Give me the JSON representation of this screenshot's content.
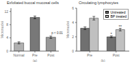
{
  "chart_data": [
    {
      "type": "bar",
      "title": "Exfoliated buccal mucosal cells",
      "xlabel": "(a)",
      "ylabel": "Micronuclei",
      "categories": [
        "Normal",
        "Pre",
        "Post"
      ],
      "values": [
        2.5,
        10.2,
        4.2
      ],
      "errors": [
        0.3,
        0.4,
        0.35
      ],
      "colors": [
        "#b0b0b0",
        "#787878",
        "#989898"
      ],
      "ylim": [
        0,
        13
      ],
      "yticks": [
        0,
        4,
        8,
        12
      ],
      "grid": false,
      "annotations": [
        {
          "text": "p < 0.01",
          "x": "Post",
          "y": 5.0
        }
      ]
    },
    {
      "type": "bar",
      "title": "Circulating lymphocytes",
      "xlabel": "(b)",
      "ylabel": "Micronuclei",
      "categories": [
        "Pre",
        "Post"
      ],
      "series": [
        {
          "name": "Untreated",
          "color": "#707070",
          "values": [
            3.2,
            2.0
          ],
          "errors": [
            0.18,
            0.12
          ]
        },
        {
          "name": "BP treated",
          "color": "#c0c0c0",
          "values": [
            4.6,
            3.0
          ],
          "errors": [
            0.25,
            0.18
          ]
        }
      ],
      "ylim": [
        0,
        6
      ],
      "yticks": [
        0,
        2,
        4,
        6
      ],
      "grid": false,
      "legend": "upper right",
      "annotations": [
        {
          "text": "*",
          "x": "Post",
          "series": "Untreated"
        },
        {
          "text": "**",
          "x": "Post",
          "series": "BP treated"
        }
      ]
    }
  ]
}
